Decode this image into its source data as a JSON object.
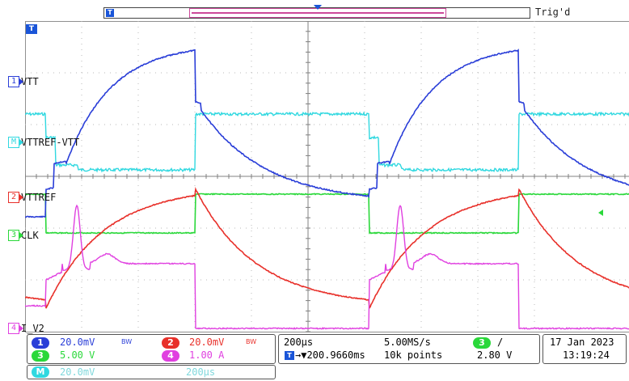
{
  "colors": {
    "ch1": "#2a3ed8",
    "ch2": "#e8302a",
    "ch3": "#2ad83a",
    "ch4": "#e040e0",
    "math": "#30d8e0",
    "math_text": "#7fd8dc",
    "grid": "#b8b8b8"
  },
  "topbar": {
    "status": "Trig'd"
  },
  "channels": {
    "ch1": {
      "number": "1",
      "label": "VTT"
    },
    "math": {
      "number": "M",
      "label": "VTTREF-VTT"
    },
    "ch2": {
      "number": "2",
      "label": "VTTREF"
    },
    "ch3": {
      "number": "3",
      "label": "CLK"
    },
    "ch4": {
      "number": "4",
      "label": "I_V2"
    }
  },
  "icons": {
    "trigger_marker": "trigger-position-icon",
    "bandwidth": "bandwidth-limit-icon",
    "trigger_edge": "rising-edge-icon"
  },
  "readouts": {
    "ch1_scale": "20.0mV",
    "ch2_scale": "20.0mV",
    "ch3_scale": "5.00 V",
    "ch4_scale": "1.00 A",
    "math_scale": "20.0mV",
    "math_time": "200μs",
    "bw_mark": "BW",
    "timebase": "200μs",
    "sample_rate": "5.00MS/s",
    "trigger_source": "3",
    "trigger_slope": "/",
    "trigger_level": "2.80 V",
    "delay": "→▼200.9660ms",
    "record_length": "10k points",
    "date": "17 Jan  2023",
    "time": "13:19:24"
  }
}
